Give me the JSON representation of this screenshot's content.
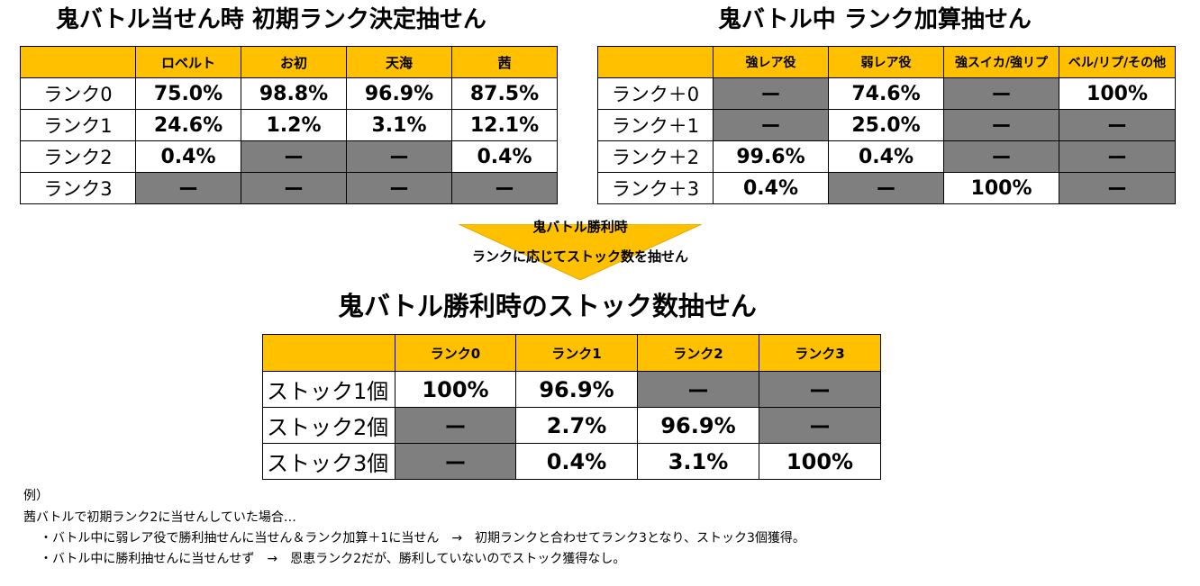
{
  "initial_rank": {
    "title": "鬼バトル当せん時 初期ランク決定抽せん",
    "headers": [
      "",
      "ロベルト",
      "お初",
      "天海",
      "茜"
    ],
    "rows": [
      {
        "label": "ランク0",
        "cells": [
          "75.0%",
          "98.8%",
          "96.9%",
          "87.5%"
        ]
      },
      {
        "label": "ランク1",
        "cells": [
          "24.6%",
          "1.2%",
          "3.1%",
          "12.1%"
        ]
      },
      {
        "label": "ランク2",
        "cells": [
          "0.4%",
          "ー",
          "ー",
          "0.4%"
        ]
      },
      {
        "label": "ランク3",
        "cells": [
          "ー",
          "ー",
          "ー",
          "ー"
        ]
      }
    ]
  },
  "rank_add": {
    "title": "鬼バトル中 ランク加算抽せん",
    "headers": [
      "",
      "強レア役",
      "弱レア役",
      "強スイカ/強リプ",
      "ベル/リプ/その他"
    ],
    "rows": [
      {
        "label": "ランク＋0",
        "cells": [
          "ー",
          "74.6%",
          "ー",
          "100%"
        ]
      },
      {
        "label": "ランク＋1",
        "cells": [
          "ー",
          "25.0%",
          "ー",
          "ー"
        ]
      },
      {
        "label": "ランク＋2",
        "cells": [
          "99.6%",
          "0.4%",
          "ー",
          "ー"
        ]
      },
      {
        "label": "ランク＋3",
        "cells": [
          "0.4%",
          "ー",
          "100%",
          "ー"
        ]
      }
    ]
  },
  "arrow": {
    "line1": "鬼バトル勝利時",
    "line2": "ランクに応じてストック数を抽せん",
    "color": "#ffc000"
  },
  "stock": {
    "title": "鬼バトル勝利時のストック数抽せん",
    "headers": [
      "",
      "ランク0",
      "ランク1",
      "ランク2",
      "ランク3"
    ],
    "rows": [
      {
        "label": "ストック1個",
        "cells": [
          "100%",
          "96.9%",
          "ー",
          "ー"
        ]
      },
      {
        "label": "ストック2個",
        "cells": [
          "ー",
          "2.7%",
          "96.9%",
          "ー"
        ]
      },
      {
        "label": "ストック3個",
        "cells": [
          "ー",
          "0.4%",
          "3.1%",
          "100%"
        ]
      }
    ]
  },
  "example": {
    "heading": "例）",
    "line1": "茜バトルで初期ランク2に当せんしていた場合…",
    "line2": "・バトル中に弱レア役で勝利抽せんに当せん＆ランク加算＋1に当せん　→　初期ランクと合わせてランク3となり、ストック3個獲得。",
    "line3": "・バトル中に勝利抽せんに当せんせず　→　恩恵ランク2だが、勝利していないのでストック獲得なし。"
  },
  "colors": {
    "header_bg": "#ffc000",
    "na_bg": "#7f7f7f"
  }
}
